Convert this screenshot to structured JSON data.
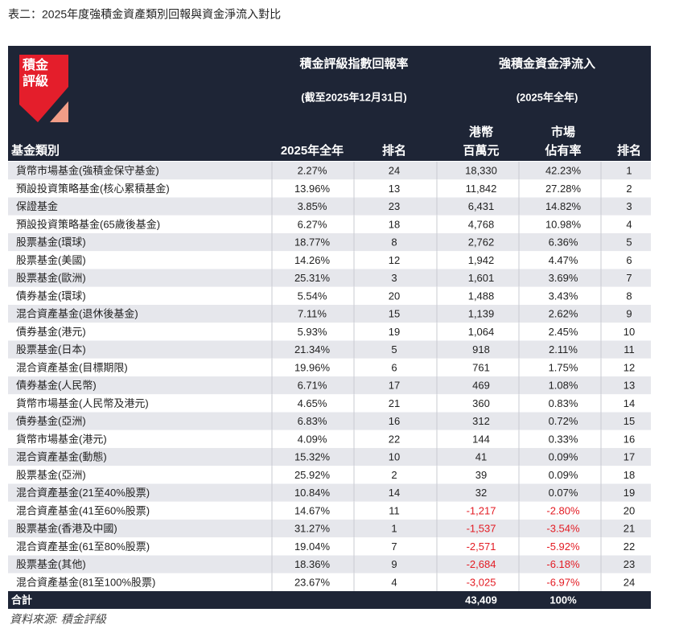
{
  "header": {
    "title": "表二：2025年度強積金資產類別回報與資金淨流入對比"
  },
  "table": {
    "logo_lines": [
      "積金",
      "評級"
    ],
    "group_headers": [
      {
        "title": "積金評級指數回報率",
        "subtitle": "(截至2025年12月31日)"
      },
      {
        "title": "強積金資金淨流入",
        "subtitle": "(2025年全年)"
      }
    ],
    "columns": [
      [
        "基金類別"
      ],
      [
        "2025年全年"
      ],
      [
        "排名"
      ],
      [
        "港幣",
        "百萬元"
      ],
      [
        "市場",
        "佔有率"
      ],
      [
        "排名"
      ]
    ],
    "rows": [
      [
        "貨幣市場基金(強積金保守基金)",
        "2.27%",
        "24",
        "18,330",
        "42.23%",
        "1"
      ],
      [
        "預設投資策略基金(核心累積基金)",
        "13.96%",
        "13",
        "11,842",
        "27.28%",
        "2"
      ],
      [
        "保證基金",
        "3.85%",
        "23",
        "6,431",
        "14.82%",
        "3"
      ],
      [
        "預設投資策略基金(65歲後基金)",
        "6.27%",
        "18",
        "4,768",
        "10.98%",
        "4"
      ],
      [
        "股票基金(環球)",
        "18.77%",
        "8",
        "2,762",
        "6.36%",
        "5"
      ],
      [
        "股票基金(美國)",
        "14.26%",
        "12",
        "1,942",
        "4.47%",
        "6"
      ],
      [
        "股票基金(歐洲)",
        "25.31%",
        "3",
        "1,601",
        "3.69%",
        "7"
      ],
      [
        "債券基金(環球)",
        "5.54%",
        "20",
        "1,488",
        "3.43%",
        "8"
      ],
      [
        "混合資產基金(退休後基金)",
        "7.11%",
        "15",
        "1,139",
        "2.62%",
        "9"
      ],
      [
        "債券基金(港元)",
        "5.93%",
        "19",
        "1,064",
        "2.45%",
        "10"
      ],
      [
        "股票基金(日本)",
        "21.34%",
        "5",
        "918",
        "2.11%",
        "11"
      ],
      [
        "混合資產基金(目標期限)",
        "19.96%",
        "6",
        "761",
        "1.75%",
        "12"
      ],
      [
        "債券基金(人民幣)",
        "6.71%",
        "17",
        "469",
        "1.08%",
        "13"
      ],
      [
        "貨幣市場基金(人民幣及港元)",
        "4.65%",
        "21",
        "360",
        "0.83%",
        "14"
      ],
      [
        "債券基金(亞洲)",
        "6.83%",
        "16",
        "312",
        "0.72%",
        "15"
      ],
      [
        "貨幣市場基金(港元)",
        "4.09%",
        "22",
        "144",
        "0.33%",
        "16"
      ],
      [
        "混合資產基金(動態)",
        "15.32%",
        "10",
        "41",
        "0.09%",
        "17"
      ],
      [
        "股票基金(亞洲)",
        "25.92%",
        "2",
        "39",
        "0.09%",
        "18"
      ],
      [
        "混合資產基金(21至40%股票)",
        "10.84%",
        "14",
        "32",
        "0.07%",
        "19"
      ],
      [
        "混合資產基金(41至60%股票)",
        "14.67%",
        "11",
        "-1,217",
        "-2.80%",
        "20"
      ],
      [
        "股票基金(香港及中國)",
        "31.27%",
        "1",
        "-1,537",
        "-3.54%",
        "21"
      ],
      [
        "混合資產基金(61至80%股票)",
        "19.04%",
        "7",
        "-2,571",
        "-5.92%",
        "22"
      ],
      [
        "股票基金(其他)",
        "18.36%",
        "9",
        "-2,684",
        "-6.18%",
        "23"
      ],
      [
        "混合資產基金(81至100%股票)",
        "23.67%",
        "4",
        "-3,025",
        "-6.97%",
        "24"
      ]
    ],
    "total": [
      "合計",
      "",
      "",
      "43,409",
      "100%",
      ""
    ]
  },
  "source": "資料來源:  積金評級"
}
